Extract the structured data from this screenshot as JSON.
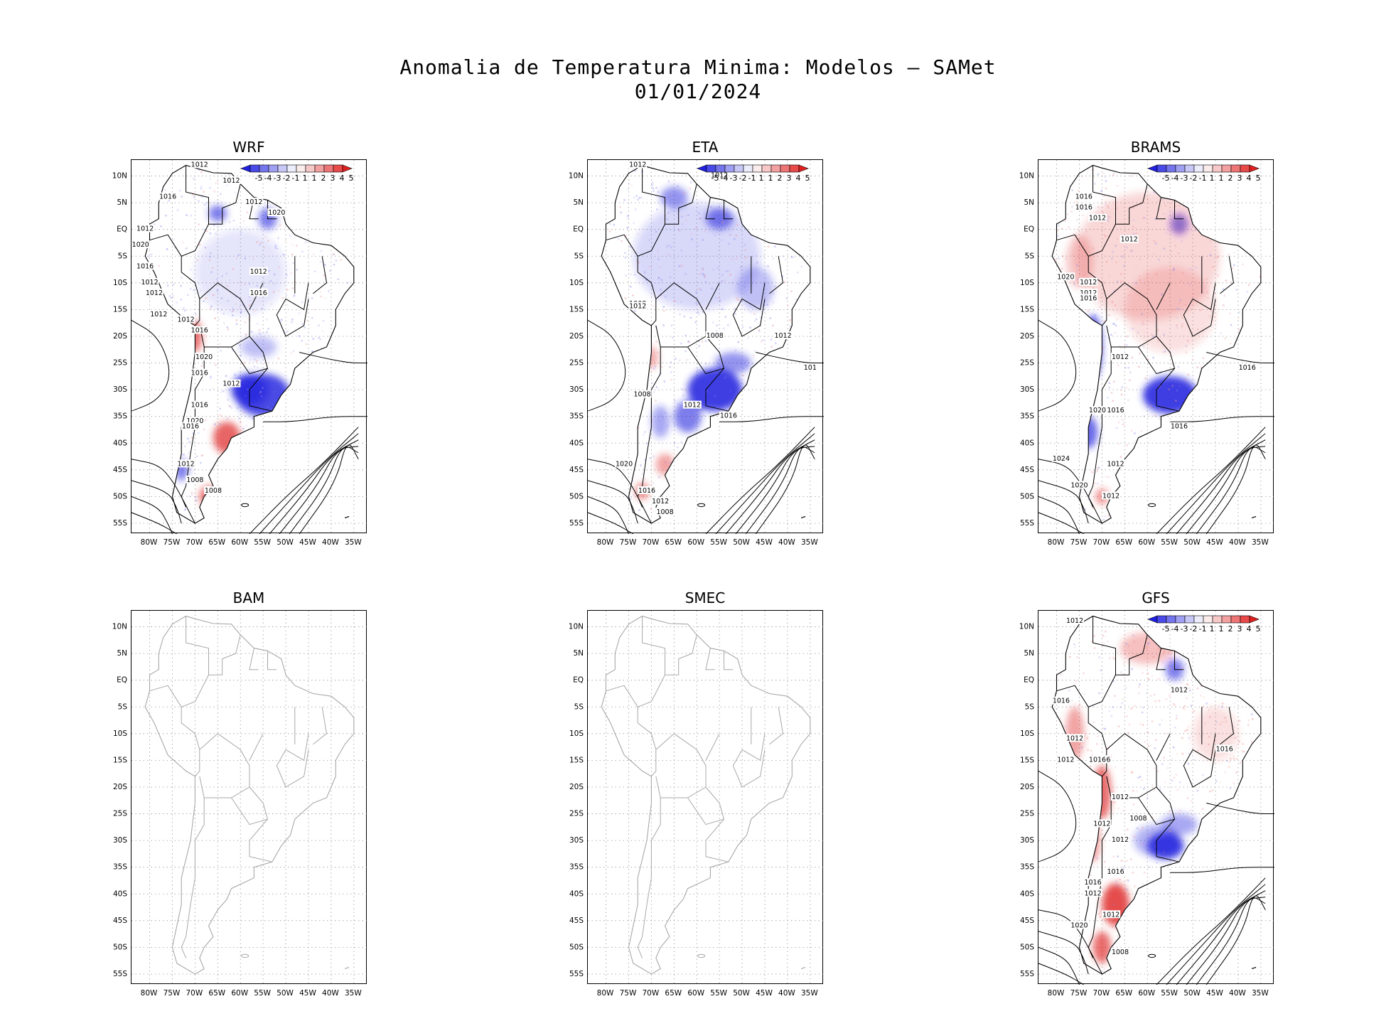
{
  "figure": {
    "title": "Anomalia de Temperatura Minima: Modelos — SAMet",
    "date": "01/01/2024"
  },
  "axes": {
    "lat_labels": [
      "10N",
      "5N",
      "EQ",
      "5S",
      "10S",
      "15S",
      "20S",
      "25S",
      "30S",
      "35S",
      "40S",
      "45S",
      "50S",
      "55S"
    ],
    "lon_labels": [
      "80W",
      "75W",
      "70W",
      "65W",
      "60W",
      "55W",
      "50W",
      "45W",
      "40W",
      "35W"
    ]
  },
  "colorbar": {
    "labels": [
      "-5",
      "-4",
      "-3",
      "-2",
      "-1",
      "1",
      "1",
      "2",
      "3",
      "4",
      "5"
    ],
    "colors": [
      "#2020e0",
      "#4a4ae8",
      "#7575ee",
      "#a0a0f2",
      "#c8c8f7",
      "#ececfb",
      "#fbecec",
      "#f7c8c8",
      "#f2a0a0",
      "#ee7575",
      "#e84a4a",
      "#e02020"
    ]
  },
  "colors": {
    "cold": "#2a2ae0",
    "warm": "#e03030",
    "land_outline": "#000000",
    "empty_outline": "#a8a8a8",
    "grid": "#9a9a9a"
  },
  "panels": [
    {
      "name": "WRF",
      "has_data": true,
      "isobars": [
        "1012",
        "1012",
        "1016",
        "1012",
        "1020",
        "1012",
        "1020",
        "1016",
        "1012",
        "1012",
        "1012",
        "1012",
        "1016",
        "1012",
        "1016",
        "1020",
        "1016",
        "1012",
        "1016",
        "1020",
        "1016",
        "1012",
        "1008",
        "1008"
      ]
    },
    {
      "name": "ETA",
      "has_data": true,
      "isobars": [
        "1012",
        "1012",
        "1008",
        "1012",
        "1008",
        "1012",
        "101",
        "1008",
        "1012",
        "1016",
        "1020",
        "1016",
        "1012",
        "1008"
      ]
    },
    {
      "name": "BRAMS",
      "has_data": true,
      "isobars": [
        "1016",
        "1016",
        "1012",
        "1012",
        "1020",
        "1012",
        "1012",
        "1016",
        "1012",
        "1016",
        "1020",
        "1016",
        "1016",
        "1024",
        "1012",
        "1020",
        "1012"
      ]
    },
    {
      "name": "BAM",
      "has_data": false,
      "isobars": []
    },
    {
      "name": "SMEC",
      "has_data": false,
      "isobars": []
    },
    {
      "name": "GFS",
      "has_data": true,
      "isobars": [
        "1012",
        "1012",
        "1016",
        "1012",
        "1012",
        "1016",
        "1016",
        "1012",
        "1008",
        "1016",
        "1012",
        "1012",
        "1016",
        "1016",
        "1012",
        "1020",
        "1012",
        "1008"
      ]
    }
  ]
}
